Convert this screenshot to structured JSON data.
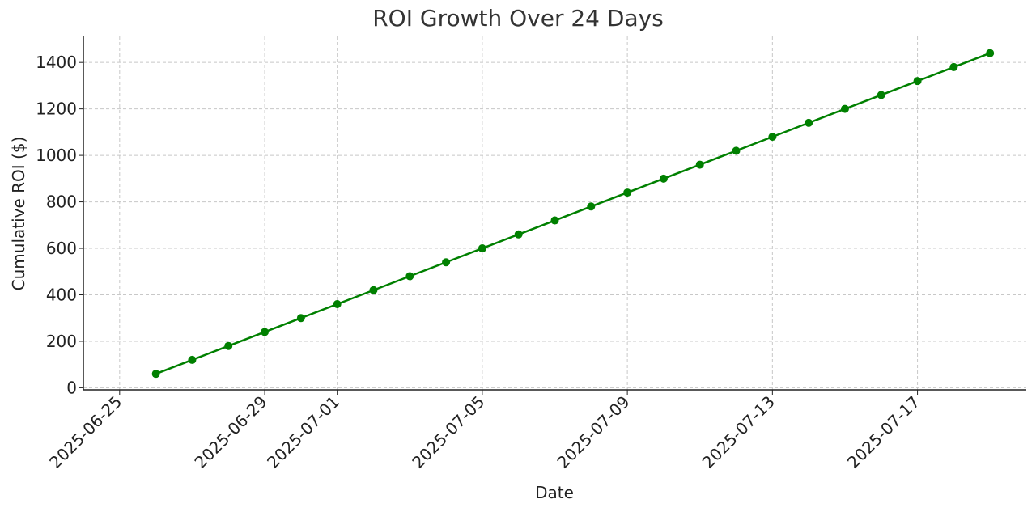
{
  "chart_data": {
    "type": "line",
    "title": "ROI Growth Over 24 Days",
    "xlabel": "Date",
    "ylabel": "Cumulative ROI ($)",
    "x": [
      "2025-06-26",
      "2025-06-27",
      "2025-06-28",
      "2025-06-29",
      "2025-06-30",
      "2025-07-01",
      "2025-07-02",
      "2025-07-03",
      "2025-07-04",
      "2025-07-05",
      "2025-07-06",
      "2025-07-07",
      "2025-07-08",
      "2025-07-09",
      "2025-07-10",
      "2025-07-11",
      "2025-07-12",
      "2025-07-13",
      "2025-07-14",
      "2025-07-15",
      "2025-07-16",
      "2025-07-17",
      "2025-07-18",
      "2025-07-19"
    ],
    "series": [
      {
        "values": [
          60,
          120,
          180,
          240,
          300,
          360,
          420,
          480,
          540,
          600,
          660,
          720,
          780,
          840,
          900,
          960,
          1020,
          1080,
          1140,
          1200,
          1260,
          1320,
          1380,
          1440
        ]
      }
    ],
    "x_ticks": [
      "2025-06-25",
      "2025-06-29",
      "2025-07-01",
      "2025-07-05",
      "2025-07-09",
      "2025-07-13",
      "2025-07-17"
    ],
    "y_ticks": [
      0,
      200,
      400,
      600,
      800,
      1000,
      1200,
      1400
    ],
    "xlim": [
      "2025-06-24",
      "2025-07-20"
    ],
    "ylim": [
      -9,
      1512
    ],
    "grid": true,
    "line_color": "#008000",
    "marker": "circle"
  }
}
